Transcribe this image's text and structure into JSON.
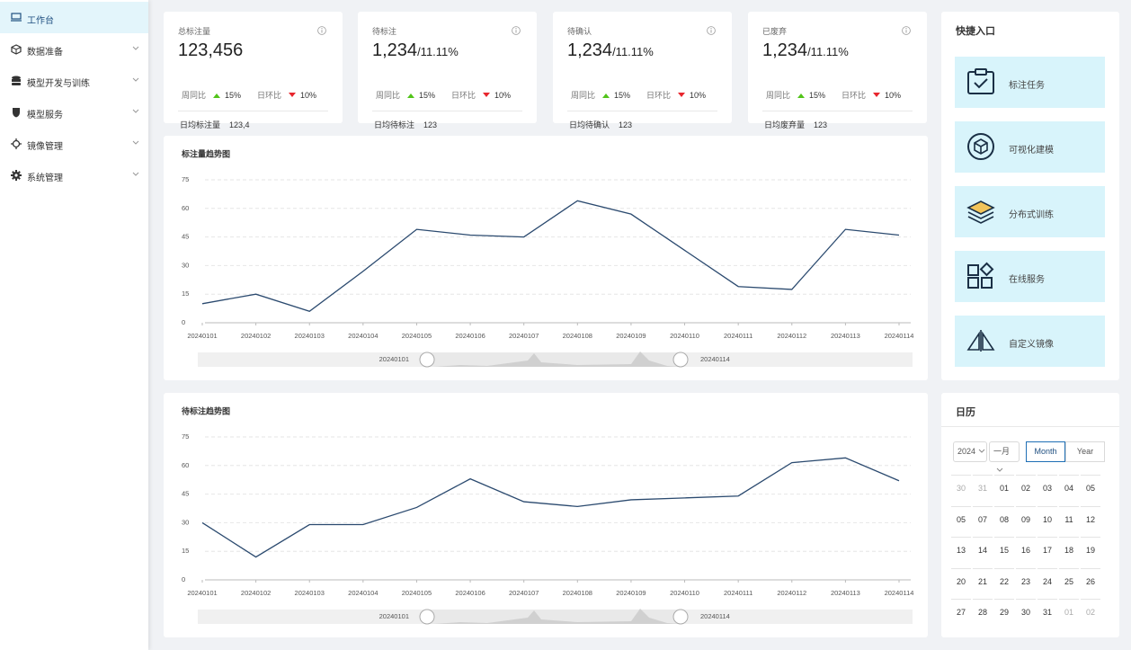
{
  "sidebar": {
    "items": [
      {
        "label": "工作台",
        "active": true,
        "expandable": false
      },
      {
        "label": "数据准备",
        "active": false,
        "expandable": true
      },
      {
        "label": "模型开发与训练",
        "active": false,
        "expandable": true
      },
      {
        "label": "模型服务",
        "active": false,
        "expandable": true
      },
      {
        "label": "镜像管理",
        "active": false,
        "expandable": true
      },
      {
        "label": "系统管理",
        "active": false,
        "expandable": true
      }
    ]
  },
  "stats": [
    {
      "label": "总标注量",
      "value": "123,456",
      "compare": [
        {
          "label": "周同比",
          "change": "15%",
          "trend": "up"
        },
        {
          "label": "日环比",
          "change": "10%",
          "trend": "down"
        }
      ],
      "footer_label": "日均标注量",
      "footer_value": "123,4"
    },
    {
      "label": "待标注",
      "value": "1,234",
      "suffix": "/11.11%",
      "compare": [
        {
          "label": "周同比",
          "change": "15%",
          "trend": "up"
        },
        {
          "label": "日环比",
          "change": "10%",
          "trend": "down"
        }
      ],
      "footer_label": "日均待标注",
      "footer_value": "123"
    },
    {
      "label": "待确认",
      "value": "1,234",
      "suffix": "/11.11%",
      "compare": [
        {
          "label": "周同比",
          "change": "15%",
          "trend": "up"
        },
        {
          "label": "日环比",
          "change": "10%",
          "trend": "down"
        }
      ],
      "footer_label": "日均待确认",
      "footer_value": "123"
    },
    {
      "label": "已废弃",
      "value": "1,234",
      "suffix": "/11.11%",
      "compare": [
        {
          "label": "周同比",
          "change": "15%",
          "trend": "up"
        },
        {
          "label": "日环比",
          "change": "10%",
          "trend": "down"
        }
      ],
      "footer_label": "日均废弃量",
      "footer_value": "123"
    }
  ],
  "chart_data": [
    {
      "type": "line",
      "title": "标注量趋势图",
      "categories": [
        "20240101",
        "20240102",
        "20240103",
        "20240104",
        "20240105",
        "20240106",
        "20240107",
        "20240108",
        "20240109",
        "20240110",
        "20240111",
        "20240112",
        "20240113",
        "20240114"
      ],
      "values": [
        10,
        15,
        6,
        27,
        49,
        46,
        45,
        64,
        57,
        38,
        19,
        17.5,
        49,
        46
      ],
      "color": "#2b4a6f",
      "ylim": [
        0,
        75
      ],
      "yticks": [
        0,
        15,
        30,
        45,
        60,
        75
      ],
      "grid": true,
      "data_zoom": true
    },
    {
      "type": "line",
      "title": "待标注趋势图",
      "categories": [
        "20240101",
        "20240102",
        "20240103",
        "20240104",
        "20240105",
        "20240106",
        "20240107",
        "20240108",
        "20240109",
        "20240110",
        "20240111",
        "20240112",
        "20240113",
        "20240114"
      ],
      "values": [
        30,
        12,
        29,
        29,
        38,
        53,
        41,
        38.5,
        42,
        43,
        44,
        61.5,
        64,
        52
      ],
      "color": "#2b4a6f",
      "ylim": [
        0,
        75
      ],
      "yticks": [
        0,
        15,
        30,
        45,
        60,
        75
      ],
      "grid": true,
      "data_zoom": true
    }
  ],
  "quick_access": {
    "title": "快捷入口",
    "items": [
      "标注任务",
      "可视化建模",
      "分布式训练",
      "在线服务",
      "自定义镜像"
    ]
  },
  "calendar": {
    "title": "日历",
    "year": "2024",
    "month": "一月",
    "modes": [
      "Month",
      "Year"
    ],
    "active_mode": "Month",
    "weeks": [
      [
        {
          "day": "30",
          "current_month": false
        },
        {
          "day": "31",
          "current_month": false
        },
        {
          "day": "01",
          "current_month": true
        },
        {
          "day": "02",
          "current_month": true
        },
        {
          "day": "03",
          "current_month": true
        },
        {
          "day": "04",
          "current_month": true
        },
        {
          "day": "05",
          "current_month": true
        }
      ],
      [
        {
          "day": "05",
          "current_month": true
        },
        {
          "day": "07",
          "current_month": true
        },
        {
          "day": "08",
          "current_month": true
        },
        {
          "day": "09",
          "current_month": true
        },
        {
          "day": "10",
          "current_month": true
        },
        {
          "day": "11",
          "current_month": true
        },
        {
          "day": "12",
          "current_month": true
        }
      ],
      [
        {
          "day": "13",
          "current_month": true
        },
        {
          "day": "14",
          "current_month": true
        },
        {
          "day": "15",
          "current_month": true
        },
        {
          "day": "16",
          "current_month": true
        },
        {
          "day": "17",
          "current_month": true
        },
        {
          "day": "18",
          "current_month": true
        },
        {
          "day": "19",
          "current_month": true
        }
      ],
      [
        {
          "day": "20",
          "current_month": true
        },
        {
          "day": "21",
          "current_month": true
        },
        {
          "day": "22",
          "current_month": true
        },
        {
          "day": "23",
          "current_month": true
        },
        {
          "day": "24",
          "current_month": true
        },
        {
          "day": "25",
          "current_month": true
        },
        {
          "day": "26",
          "current_month": true
        }
      ],
      [
        {
          "day": "27",
          "current_month": true
        },
        {
          "day": "28",
          "current_month": true
        },
        {
          "day": "29",
          "current_month": true
        },
        {
          "day": "30",
          "current_month": true
        },
        {
          "day": "31",
          "current_month": true
        },
        {
          "day": "01",
          "current_month": false
        },
        {
          "day": "02",
          "current_month": false
        }
      ]
    ]
  }
}
